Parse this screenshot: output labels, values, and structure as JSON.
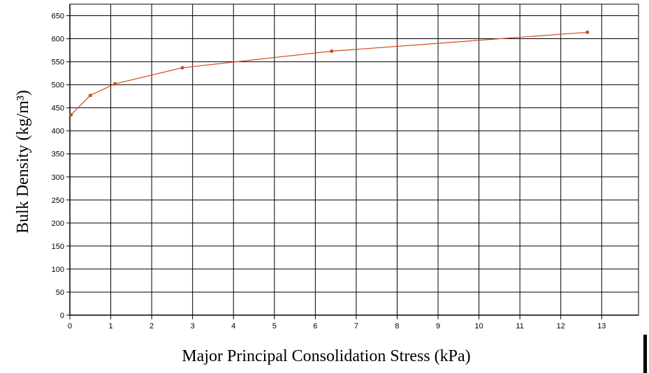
{
  "chart_data": {
    "type": "line",
    "xlabel": "Major Principal Consolidation Stress (kPa)",
    "ylabel": "Bulk Density (kg/m³)",
    "series": [
      {
        "color": "#d04a1c",
        "x": [
          0.03,
          0.5,
          1.1,
          2.75,
          6.4,
          12.65
        ],
        "values": [
          435,
          477,
          502,
          537,
          573,
          614
        ]
      }
    ],
    "xlim": [
      0,
      13.9
    ],
    "ylim": [
      0,
      675
    ],
    "xticks": [
      0,
      1,
      2,
      3,
      4,
      5,
      6,
      7,
      8,
      9,
      10,
      11,
      12,
      13
    ],
    "yticks": [
      0,
      50,
      100,
      150,
      200,
      250,
      300,
      350,
      400,
      450,
      500,
      550,
      600,
      650
    ],
    "grid": true
  }
}
